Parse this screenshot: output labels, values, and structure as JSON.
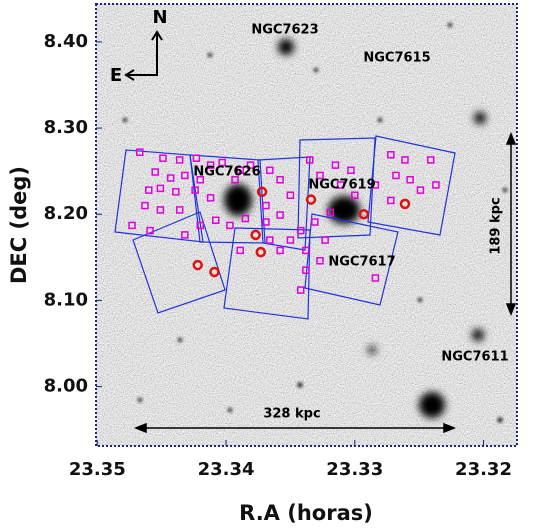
{
  "chart_data": {
    "type": "scatter",
    "xlabel": "R.A (horas)",
    "ylabel": "DEC (deg)",
    "xlim": [
      23.3501,
      23.3174
    ],
    "ylim": [
      7.931,
      8.444
    ],
    "xticks": [
      23.35,
      23.34,
      23.33,
      23.32
    ],
    "yticks": [
      {
        "value": 8.4,
        "label": "8.40"
      },
      {
        "value": 8.3,
        "label": "8.30"
      },
      {
        "value": 8.2,
        "label": "8.20"
      },
      {
        "value": 8.1,
        "label": "8.10"
      },
      {
        "value": 8.0,
        "label": "8.00"
      }
    ],
    "annotations": [
      "NGC7623",
      "NGC7615",
      "NGC7626",
      "NGC7619",
      "NGC7617",
      "NGC7611",
      "328 kpc",
      "189 kpc",
      "N",
      "E"
    ],
    "series": [
      {
        "marker": "square",
        "color": "#e000e0",
        "x": [
          23.3467,
          23.3449,
          23.3436,
          23.3423,
          23.3412,
          23.3403,
          23.3389,
          23.3455,
          23.3443,
          23.3432,
          23.342,
          23.346,
          23.3451,
          23.3439,
          23.3424,
          23.3412,
          23.3463,
          23.3451,
          23.3473,
          23.3459,
          23.3432,
          23.342,
          23.3408,
          23.3397,
          23.3385,
          23.3369,
          23.3358,
          23.3366,
          23.335,
          23.3342,
          23.3331,
          23.3319,
          23.3389,
          23.3358,
          23.3338,
          23.3323,
          23.3381,
          23.3366,
          23.3358,
          23.3369,
          23.335,
          23.3335,
          23.3327,
          23.3315,
          23.3303,
          23.3311,
          23.33,
          23.3284,
          23.3272,
          23.3261,
          23.3268,
          23.3257,
          23.3249,
          23.3237,
          23.3241,
          23.3272,
          23.3342,
          23.3338,
          23.3284,
          23.3327,
          23.3436,
          23.3393
        ],
        "values": [
          8.272,
          8.265,
          8.263,
          8.265,
          8.257,
          8.26,
          8.251,
          8.249,
          8.242,
          8.245,
          8.24,
          8.228,
          8.23,
          8.226,
          8.228,
          8.219,
          8.21,
          8.205,
          8.187,
          8.181,
          8.176,
          8.187,
          8.193,
          8.187,
          8.195,
          8.191,
          8.199,
          8.17,
          8.17,
          8.181,
          8.191,
          8.202,
          8.158,
          8.158,
          8.158,
          8.17,
          8.257,
          8.251,
          8.24,
          8.21,
          8.222,
          8.263,
          8.245,
          8.257,
          8.251,
          8.234,
          8.222,
          8.234,
          8.269,
          8.263,
          8.245,
          8.24,
          8.228,
          8.234,
          8.263,
          8.216,
          8.112,
          8.135,
          8.126,
          8.146,
          8.205,
          8.24
        ]
      },
      {
        "marker": "circle",
        "color": "#dd1111",
        "x": [
          23.3372,
          23.3334,
          23.3293,
          23.3261,
          23.3377,
          23.3373,
          23.3422,
          23.3409
        ],
        "values": [
          8.226,
          8.217,
          8.2,
          8.212,
          8.176,
          8.156,
          8.141,
          8.133
        ]
      }
    ]
  }
}
